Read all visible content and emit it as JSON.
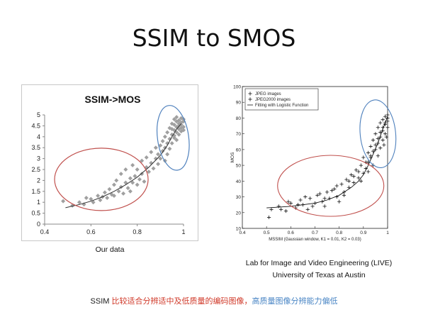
{
  "slide_title": "SSIM to SMOS",
  "captions": {
    "left": "Our data",
    "right_line1": "Lab for Image and Video Engineering (LIVE)",
    "right_line2": "University of Texas at Austin"
  },
  "note": {
    "prefix": "SSIM ",
    "red_part": "比较适合分辨适中及低质量的编码图像，",
    "blue_part": "高质量图像分辨能力偏低"
  },
  "colors": {
    "red_annotation": "#c0504d",
    "blue_annotation": "#4f81bd",
    "marker_left": "#a0a0a0",
    "marker_right": "#111111"
  },
  "chart_data": [
    {
      "type": "scatter",
      "title": "SSIM->MOS",
      "xlabel": "",
      "ylabel": "",
      "xlim": [
        0.4,
        1.0
      ],
      "ylim": [
        0,
        5
      ],
      "xticks": [
        "0.4",
        "0.6",
        "0.8",
        "1"
      ],
      "yticks": [
        "0",
        "0.5",
        "1",
        "1.5",
        "2",
        "2.5",
        "3",
        "3.5",
        "4",
        "4.5",
        "5"
      ],
      "marker": "diamond",
      "grid": false,
      "series": [
        {
          "name": "data",
          "points": [
            [
              0.48,
              1.05
            ],
            [
              0.52,
              0.85
            ],
            [
              0.55,
              1.0
            ],
            [
              0.57,
              0.9
            ],
            [
              0.58,
              1.2
            ],
            [
              0.6,
              1.15
            ],
            [
              0.61,
              1.0
            ],
            [
              0.63,
              1.3
            ],
            [
              0.64,
              1.1
            ],
            [
              0.65,
              1.25
            ],
            [
              0.66,
              1.45
            ],
            [
              0.67,
              1.2
            ],
            [
              0.68,
              1.6
            ],
            [
              0.69,
              1.35
            ],
            [
              0.7,
              1.8
            ],
            [
              0.7,
              1.3
            ],
            [
              0.71,
              2.0
            ],
            [
              0.72,
              1.5
            ],
            [
              0.73,
              1.7
            ],
            [
              0.73,
              2.3
            ],
            [
              0.74,
              1.4
            ],
            [
              0.75,
              1.9
            ],
            [
              0.75,
              2.5
            ],
            [
              0.76,
              1.65
            ],
            [
              0.77,
              2.1
            ],
            [
              0.77,
              1.5
            ],
            [
              0.78,
              1.9
            ],
            [
              0.78,
              2.7
            ],
            [
              0.79,
              2.2
            ],
            [
              0.8,
              1.8
            ],
            [
              0.8,
              2.5
            ],
            [
              0.81,
              2.05
            ],
            [
              0.82,
              2.9
            ],
            [
              0.82,
              2.3
            ],
            [
              0.83,
              1.95
            ],
            [
              0.84,
              2.6
            ],
            [
              0.84,
              3.05
            ],
            [
              0.85,
              2.4
            ],
            [
              0.86,
              2.8
            ],
            [
              0.86,
              3.3
            ],
            [
              0.87,
              2.55
            ],
            [
              0.88,
              3.0
            ],
            [
              0.88,
              3.5
            ],
            [
              0.89,
              2.75
            ],
            [
              0.89,
              3.2
            ],
            [
              0.9,
              3.6
            ],
            [
              0.9,
              3.0
            ],
            [
              0.91,
              3.8
            ],
            [
              0.91,
              3.35
            ],
            [
              0.92,
              4.0
            ],
            [
              0.92,
              3.5
            ],
            [
              0.92,
              2.9
            ],
            [
              0.93,
              4.2
            ],
            [
              0.93,
              3.7
            ],
            [
              0.93,
              3.2
            ],
            [
              0.94,
              4.4
            ],
            [
              0.94,
              3.9
            ],
            [
              0.94,
              3.45
            ],
            [
              0.95,
              4.6
            ],
            [
              0.95,
              4.1
            ],
            [
              0.95,
              3.7
            ],
            [
              0.95,
              4.35
            ],
            [
              0.96,
              4.8
            ],
            [
              0.96,
              4.3
            ],
            [
              0.96,
              3.95
            ],
            [
              0.96,
              4.55
            ],
            [
              0.96,
              4.05
            ],
            [
              0.97,
              4.7
            ],
            [
              0.97,
              4.45
            ],
            [
              0.97,
              4.2
            ],
            [
              0.97,
              3.85
            ],
            [
              0.97,
              4.9
            ],
            [
              0.98,
              4.6
            ],
            [
              0.98,
              4.35
            ],
            [
              0.98,
              4.75
            ],
            [
              0.98,
              4.1
            ],
            [
              0.98,
              4.5
            ],
            [
              0.99,
              4.65
            ],
            [
              0.99,
              4.4
            ],
            [
              0.99,
              4.85
            ],
            [
              0.99,
              4.25
            ],
            [
              0.99,
              4.55
            ],
            [
              1.0,
              4.7
            ],
            [
              1.0,
              4.45
            ],
            [
              1.0,
              4.8
            ],
            [
              1.0,
              4.3
            ]
          ]
        },
        {
          "name": "fit",
          "type": "line",
          "points": [
            [
              0.49,
              0.75
            ],
            [
              0.55,
              0.9
            ],
            [
              0.6,
              1.05
            ],
            [
              0.65,
              1.25
            ],
            [
              0.7,
              1.5
            ],
            [
              0.75,
              1.8
            ],
            [
              0.8,
              2.15
            ],
            [
              0.85,
              2.6
            ],
            [
              0.9,
              3.15
            ],
            [
              0.93,
              3.6
            ],
            [
              0.95,
              4.0
            ],
            [
              0.97,
              4.35
            ],
            [
              0.99,
              4.6
            ]
          ]
        }
      ],
      "annotations": [
        {
          "shape": "ellipse",
          "color": "red",
          "region": "low-mid quality"
        },
        {
          "shape": "ellipse",
          "color": "blue",
          "region": "high quality"
        }
      ]
    },
    {
      "type": "scatter",
      "title": "",
      "xlabel": "MSSIM (Gaussian window, K1 = 0.01, K2 = 0.03)",
      "ylabel": "MOS",
      "xlim": [
        0.4,
        1.0
      ],
      "ylim": [
        10,
        100
      ],
      "xticks": [
        "0.4",
        "0.5",
        "0.6",
        "0.7",
        "0.8",
        "0.9",
        "1"
      ],
      "yticks": [
        "10",
        "20",
        "30",
        "40",
        "50",
        "60",
        "70",
        "80",
        "90",
        "100"
      ],
      "legend": {
        "position": "top-left",
        "entries": [
          "JPEG images",
          "JPEG2000 images",
          "Fitting with Logistic Function"
        ]
      },
      "grid": false,
      "series": [
        {
          "name": "JPEG images",
          "marker": "plus",
          "points": [
            [
              0.51,
              17
            ],
            [
              0.52,
              22
            ],
            [
              0.55,
              24
            ],
            [
              0.58,
              21
            ],
            [
              0.6,
              26
            ],
            [
              0.62,
              23
            ],
            [
              0.64,
              28
            ],
            [
              0.65,
              25
            ],
            [
              0.67,
              22
            ],
            [
              0.68,
              29
            ],
            [
              0.7,
              26
            ],
            [
              0.71,
              31
            ],
            [
              0.73,
              27
            ],
            [
              0.74,
              24
            ],
            [
              0.75,
              33
            ],
            [
              0.76,
              29
            ],
            [
              0.78,
              35
            ],
            [
              0.79,
              30
            ],
            [
              0.8,
              27
            ],
            [
              0.81,
              38
            ],
            [
              0.82,
              33
            ],
            [
              0.83,
              41
            ],
            [
              0.84,
              36
            ],
            [
              0.85,
              44
            ],
            [
              0.86,
              39
            ],
            [
              0.87,
              47
            ],
            [
              0.88,
              42
            ],
            [
              0.89,
              50
            ],
            [
              0.9,
              45
            ],
            [
              0.9,
              55
            ],
            [
              0.91,
              48
            ],
            [
              0.92,
              58
            ],
            [
              0.92,
              52
            ],
            [
              0.93,
              62
            ],
            [
              0.93,
              55
            ],
            [
              0.94,
              66
            ],
            [
              0.94,
              59
            ],
            [
              0.95,
              70
            ],
            [
              0.95,
              63
            ],
            [
              0.96,
              74
            ],
            [
              0.96,
              67
            ],
            [
              0.97,
              77
            ],
            [
              0.97,
              71
            ],
            [
              0.98,
              79
            ],
            [
              0.98,
              74
            ],
            [
              0.99,
              81
            ],
            [
              0.99,
              76
            ],
            [
              1.0,
              82
            ],
            [
              1.0,
              78
            ]
          ]
        },
        {
          "name": "JPEG2000 images",
          "marker": "plus",
          "points": [
            [
              0.56,
              22
            ],
            [
              0.59,
              27
            ],
            [
              0.63,
              25
            ],
            [
              0.66,
              30
            ],
            [
              0.69,
              24
            ],
            [
              0.72,
              32
            ],
            [
              0.74,
              29
            ],
            [
              0.77,
              34
            ],
            [
              0.79,
              37
            ],
            [
              0.82,
              31
            ],
            [
              0.84,
              40
            ],
            [
              0.86,
              43
            ],
            [
              0.88,
              46
            ],
            [
              0.89,
              40
            ],
            [
              0.91,
              52
            ],
            [
              0.92,
              46
            ],
            [
              0.93,
              56
            ],
            [
              0.94,
              50
            ],
            [
              0.95,
              60
            ],
            [
              0.96,
              56
            ],
            [
              0.96,
              64
            ],
            [
              0.97,
              61
            ],
            [
              0.97,
              68
            ],
            [
              0.98,
              66
            ],
            [
              0.98,
              72
            ],
            [
              0.99,
              70
            ],
            [
              0.99,
              77
            ],
            [
              1.0,
              74
            ],
            [
              1.0,
              80
            ],
            [
              0.985,
              63
            ],
            [
              0.995,
              68
            ]
          ]
        },
        {
          "name": "Fitting with Logistic Function",
          "type": "line",
          "points": [
            [
              0.5,
              23
            ],
            [
              0.6,
              24
            ],
            [
              0.7,
              26
            ],
            [
              0.75,
              28
            ],
            [
              0.8,
              31
            ],
            [
              0.85,
              36
            ],
            [
              0.88,
              40
            ],
            [
              0.9,
              44
            ],
            [
              0.92,
              50
            ],
            [
              0.94,
              57
            ],
            [
              0.96,
              64
            ],
            [
              0.98,
              73
            ],
            [
              1.0,
              81
            ]
          ]
        }
      ],
      "annotations": [
        {
          "shape": "ellipse",
          "color": "red",
          "region": "low-mid quality"
        },
        {
          "shape": "ellipse",
          "color": "blue",
          "region": "high quality"
        }
      ]
    }
  ]
}
